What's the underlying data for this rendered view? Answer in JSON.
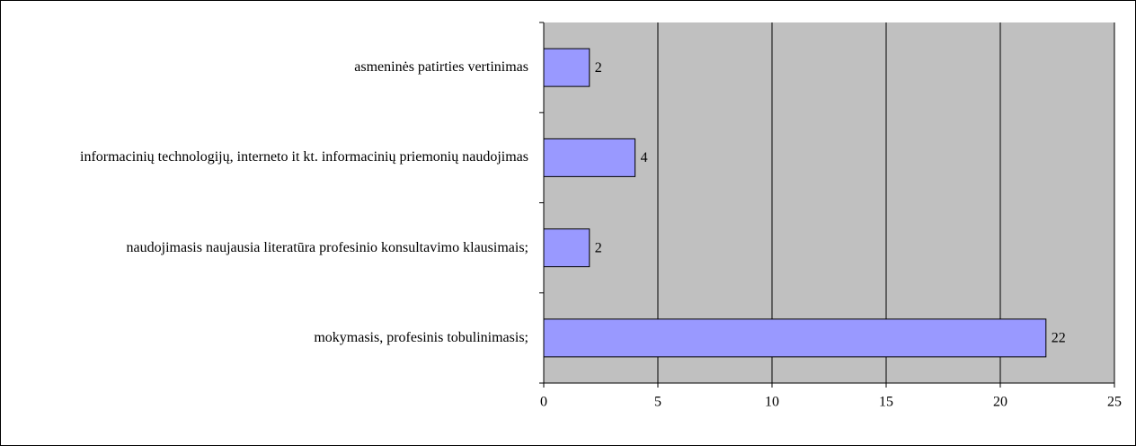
{
  "chart_data": {
    "type": "bar",
    "orientation": "horizontal",
    "categories": [
      "asmeninės patirties vertinimas",
      "informacinių technologijų, interneto it kt. informacinių priemonių naudojimas",
      "naudojimasis naujausia literatūra profesinio  konsultavimo klausimais;",
      "mokymasis, profesinis tobulinimasis;"
    ],
    "values": [
      2,
      4,
      2,
      22
    ],
    "color": "#9999ff",
    "background": "#c0c0c0",
    "xlim": [
      0,
      25
    ],
    "xticks": [
      0,
      5,
      10,
      15,
      20,
      25
    ],
    "grid": true
  }
}
